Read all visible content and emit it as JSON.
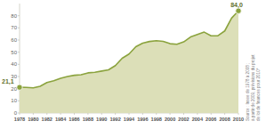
{
  "chart_data": {
    "type": "area",
    "x": [
      1978,
      1979,
      1980,
      1981,
      1982,
      1983,
      1984,
      1985,
      1986,
      1987,
      1988,
      1989,
      1990,
      1991,
      1992,
      1993,
      1994,
      1995,
      1996,
      1997,
      1998,
      1999,
      2000,
      2001,
      2002,
      2003,
      2004,
      2005,
      2006,
      2007,
      2008,
      2009,
      2010
    ],
    "values": [
      21.1,
      21,
      20.7,
      22,
      25,
      26.5,
      28.5,
      30,
      31,
      31.5,
      33,
      33.5,
      34.5,
      35.5,
      39,
      45,
      48.5,
      54.5,
      57.5,
      58.8,
      59.5,
      58.9,
      57,
      56.5,
      58.5,
      62.5,
      64.5,
      66.5,
      63.5,
      63.5,
      67.5,
      78,
      84.0
    ],
    "value_labels": [
      "21,1",
      null,
      null,
      null,
      null,
      null,
      null,
      null,
      null,
      null,
      null,
      null,
      null,
      null,
      null,
      null,
      null,
      null,
      null,
      null,
      null,
      null,
      null,
      null,
      null,
      null,
      null,
      null,
      null,
      null,
      null,
      null,
      "84,0"
    ],
    "color": "#8ba33e",
    "xlim": [
      1978,
      2010
    ],
    "xticks": [
      1978,
      1980,
      1982,
      1984,
      1986,
      1988,
      1990,
      1992,
      1994,
      1996,
      1998,
      2000,
      2002,
      2004,
      2006,
      2008,
      2010
    ],
    "ylim": [
      0,
      90
    ],
    "yticks": [
      0,
      10,
      20,
      30,
      40,
      50,
      60,
      70,
      80
    ],
    "grid": false,
    "source": [
      "Source : Insee de 1978 à 2008 ;",
      "à partir de 2009, prévisions du projet",
      "de loi de finances pour 2010*"
    ]
  }
}
